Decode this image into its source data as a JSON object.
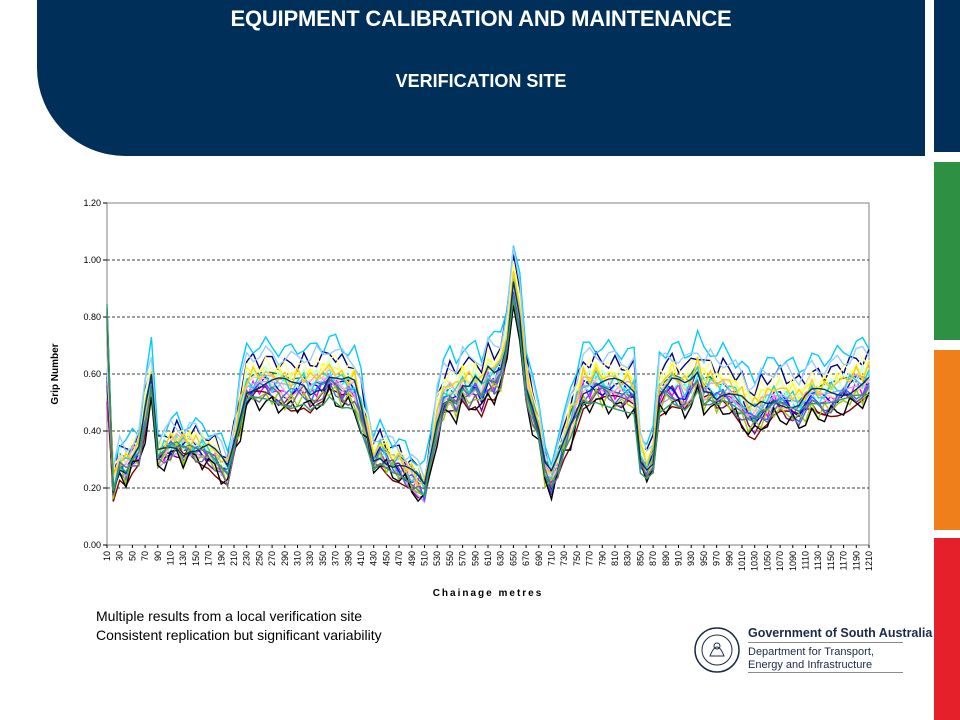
{
  "header": {
    "title": "EQUIPMENT CALIBRATION AND MAINTENANCE",
    "subtitle": "VERIFICATION SITE"
  },
  "side_bars": {
    "colors": [
      "#002f59",
      "#2e9043",
      "#ef7f1a",
      "#e5202a"
    ]
  },
  "captions": {
    "line1": "Multiple results from a local verification site",
    "line2": "Consistent replication but significant variability"
  },
  "logo": {
    "line1": "Government of South Australia",
    "line2": "Department for Transport,",
    "line3": "Energy and Infrastructure",
    "icon": "south-australia-crest-icon"
  },
  "chart_data": {
    "type": "line",
    "xlabel": "Chainage metres",
    "ylabel": "Grip Number",
    "ylim": [
      0,
      1.2
    ],
    "yticks": [
      "0.00",
      "0.20",
      "0.40",
      "0.60",
      "0.80",
      "1.00",
      "1.20"
    ],
    "grid": "horizontal dashed",
    "xtick_labels": [
      "10",
      "30",
      "50",
      "70",
      "90",
      "110",
      "130",
      "150",
      "170",
      "190",
      "210",
      "230",
      "250",
      "270",
      "290",
      "310",
      "330",
      "350",
      "370",
      "390",
      "410",
      "430",
      "450",
      "470",
      "490",
      "510",
      "530",
      "550",
      "570",
      "590",
      "610",
      "630",
      "650",
      "670",
      "690",
      "710",
      "730",
      "750",
      "770",
      "790",
      "810",
      "830",
      "850",
      "870",
      "890",
      "910",
      "930",
      "950",
      "970",
      "990",
      "1010",
      "1030",
      "1050",
      "1070",
      "1090",
      "1110",
      "1130",
      "1150",
      "1170",
      "1190",
      "1210"
    ],
    "x": [
      10,
      20,
      30,
      40,
      50,
      60,
      70,
      80,
      90,
      100,
      110,
      120,
      130,
      140,
      150,
      160,
      170,
      180,
      190,
      200,
      210,
      220,
      230,
      240,
      250,
      260,
      270,
      280,
      290,
      300,
      310,
      320,
      330,
      340,
      350,
      360,
      370,
      380,
      390,
      400,
      410,
      420,
      430,
      440,
      450,
      460,
      470,
      480,
      490,
      500,
      510,
      520,
      530,
      540,
      550,
      560,
      570,
      580,
      590,
      600,
      610,
      620,
      630,
      640,
      650,
      660,
      670,
      680,
      690,
      700,
      710,
      720,
      730,
      740,
      750,
      760,
      770,
      780,
      790,
      800,
      810,
      820,
      830,
      840,
      850,
      860,
      870,
      880,
      890,
      900,
      910,
      920,
      930,
      940,
      950,
      960,
      970,
      980,
      990,
      1000,
      1010,
      1020,
      1030,
      1040,
      1050,
      1060,
      1070,
      1080,
      1090,
      1100,
      1110,
      1120,
      1130,
      1140,
      1150,
      1160,
      1170,
      1180,
      1190,
      1200,
      1210
    ],
    "base_profile": [
      0.6,
      0.2,
      0.28,
      0.26,
      0.3,
      0.32,
      0.55,
      0.3,
      0.32,
      0.34,
      0.35,
      0.33,
      0.34,
      0.33,
      0.32,
      0.25,
      0.54,
      0.55,
      0.55,
      0.54,
      0.53,
      0.55,
      0.53,
      0.55,
      0.55,
      0.58,
      0.56,
      0.54,
      0.54,
      0.53,
      0.3,
      0.32,
      0.3,
      0.28,
      0.27,
      0.25,
      0.18,
      0.42,
      0.5,
      0.52,
      0.5,
      0.55,
      0.53,
      0.55,
      0.52,
      0.58,
      0.57,
      0.6,
      0.8,
      0.55,
      0.38,
      0.25,
      0.22,
      0.28,
      0.35,
      0.54,
      0.55,
      0.54,
      0.53,
      0.52,
      0.3,
      0.28,
      0.3,
      0.52,
      0.55,
      0.52,
      0.54,
      0.58,
      0.53,
      0.54,
      0.52,
      0.53,
      0.52,
      0.5,
      0.48,
      0.45,
      0.44,
      0.47,
      0.48,
      0.5,
      0.5,
      0.49,
      0.48,
      0.47,
      0.49,
      0.5,
      0.5,
      0.51,
      0.55,
      0.56
    ],
    "base_x": [
      10,
      20,
      30,
      40,
      50,
      60,
      80,
      90,
      100,
      110,
      120,
      130,
      140,
      150,
      170,
      200,
      230,
      240,
      260,
      280,
      300,
      320,
      330,
      340,
      350,
      360,
      370,
      380,
      390,
      400,
      430,
      440,
      450,
      460,
      470,
      480,
      510,
      530,
      540,
      550,
      560,
      570,
      580,
      590,
      600,
      610,
      620,
      630,
      650,
      670,
      690,
      700,
      710,
      720,
      730,
      760,
      780,
      800,
      820,
      840,
      850,
      860,
      870,
      880,
      900,
      920,
      930,
      940,
      950,
      960,
      970,
      980,
      990,
      1000,
      1010,
      1020,
      1030,
      1040,
      1050,
      1060,
      1070,
      1080,
      1090,
      1100,
      1110,
      1120,
      1130,
      1150,
      1190,
      1210
    ],
    "series_colors": [
      "#000080",
      "#ff00ff",
      "#ffff00",
      "#00ffff",
      "#800080",
      "#800000",
      "#008080",
      "#0000ff",
      "#00ccff",
      "#ccffff",
      "#ccffcc",
      "#ffff99",
      "#99ccff",
      "#ff99cc",
      "#cc99ff",
      "#ffcc99",
      "#3366ff",
      "#33cccc",
      "#99cc00",
      "#ffcc00",
      "#000000",
      "#666699",
      "#003366",
      "#339966"
    ],
    "series_offsets": [
      0.1,
      0.0,
      0.06,
      0.02,
      -0.02,
      -0.04,
      0.03,
      0.01,
      0.15,
      0.05,
      0.04,
      0.08,
      0.12,
      0.02,
      0.0,
      0.01,
      -0.01,
      0.03,
      -0.03,
      0.05,
      -0.05,
      -0.02,
      0.02,
      -0.03
    ]
  }
}
